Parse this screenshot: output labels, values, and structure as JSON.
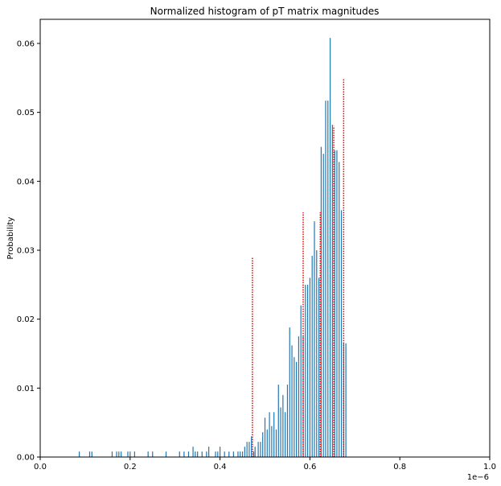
{
  "chart_data": {
    "type": "bar",
    "title": "Normalized histogram of pT matrix magnitudes",
    "xlabel": "",
    "ylabel": "Probability",
    "x_offset_label": "1e−6",
    "xlim": [
      0,
      1.0
    ],
    "ylim": [
      0,
      0.0635
    ],
    "grid": false,
    "legend": "none",
    "x_ticks": [
      0,
      0.2,
      0.4,
      0.6,
      0.8,
      1.0
    ],
    "x_tick_labels": [
      "0.0",
      "0.2",
      "0.4",
      "0.6",
      "0.8",
      "1.0"
    ],
    "y_ticks": [
      0,
      0.01,
      0.02,
      0.03,
      0.04,
      0.05,
      0.06
    ],
    "y_tick_labels": [
      "0.00",
      "0.01",
      "0.02",
      "0.03",
      "0.04",
      "0.05",
      "0.06"
    ],
    "bar_color": "#1f77b4",
    "line_color": "#ff0000",
    "series": [
      {
        "kind": "histogram",
        "x": [
          0.087,
          0.11,
          0.115,
          0.16,
          0.17,
          0.175,
          0.18,
          0.195,
          0.2,
          0.21,
          0.24,
          0.25,
          0.28,
          0.31,
          0.32,
          0.33,
          0.34,
          0.345,
          0.35,
          0.36,
          0.37,
          0.375,
          0.39,
          0.395,
          0.4,
          0.41,
          0.42,
          0.43,
          0.44,
          0.445,
          0.45,
          0.455,
          0.46,
          0.465,
          0.47,
          0.475,
          0.478,
          0.485,
          0.49,
          0.495,
          0.5,
          0.505,
          0.51,
          0.515,
          0.52,
          0.525,
          0.53,
          0.535,
          0.54,
          0.545,
          0.55,
          0.555,
          0.56,
          0.565,
          0.57,
          0.575,
          0.58,
          0.585,
          0.59,
          0.595,
          0.6,
          0.605,
          0.61,
          0.615,
          0.62,
          0.625,
          0.63,
          0.635,
          0.64,
          0.645,
          0.65,
          0.655,
          0.66,
          0.665,
          0.67,
          0.675,
          0.68
        ],
        "values": [
          0.0008,
          0.0008,
          0.0008,
          0.0008,
          0.0008,
          0.0008,
          0.0008,
          0.0008,
          0.0008,
          0.0008,
          0.0008,
          0.0008,
          0.0008,
          0.0008,
          0.0008,
          0.0008,
          0.0015,
          0.0008,
          0.0008,
          0.0008,
          0.0008,
          0.0015,
          0.0008,
          0.0008,
          0.0015,
          0.0008,
          0.0008,
          0.0008,
          0.0008,
          0.0008,
          0.0008,
          0.0015,
          0.0022,
          0.0022,
          0.003,
          0.0008,
          0.0015,
          0.0022,
          0.0022,
          0.0036,
          0.0057,
          0.004,
          0.0065,
          0.0045,
          0.0065,
          0.004,
          0.0105,
          0.0072,
          0.009,
          0.0065,
          0.0105,
          0.0188,
          0.0162,
          0.0145,
          0.0138,
          0.0175,
          0.022,
          0.0175,
          0.025,
          0.025,
          0.026,
          0.0292,
          0.0342,
          0.03,
          0.026,
          0.045,
          0.044,
          0.0517,
          0.0517,
          0.0608,
          0.0482,
          0.0445,
          0.0445,
          0.0428,
          0.0358,
          0.0165,
          0.0165
        ]
      },
      {
        "kind": "vertical-lines",
        "x": [
          0.472,
          0.585,
          0.623,
          0.653,
          0.675
        ],
        "values": [
          0.029,
          0.0355,
          0.0355,
          0.048,
          0.0548
        ]
      }
    ]
  }
}
